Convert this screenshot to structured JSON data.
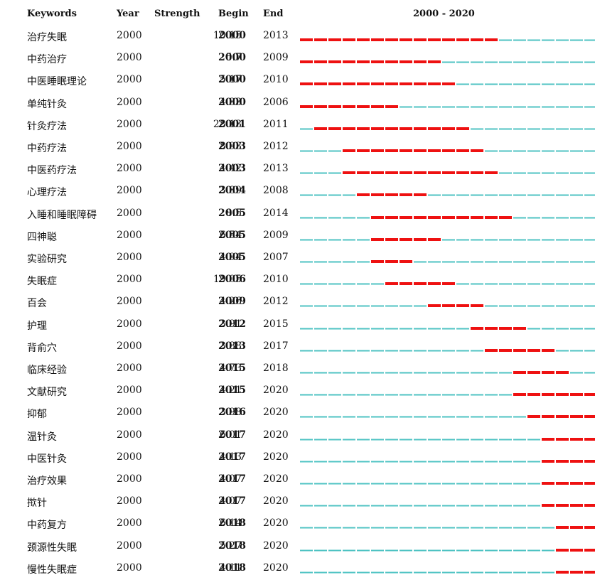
{
  "headers": {
    "keywords": "Keywords",
    "year": "Year",
    "strength": "Strength",
    "begin": "Begin",
    "end": "End",
    "range": "2000 - 2020"
  },
  "colors": {
    "burst": "#ee1111",
    "base": "#4fc3c3"
  },
  "chart_data": {
    "type": "table",
    "range": [
      2000,
      2020
    ],
    "rows": [
      {
        "keyword": "治疗失眠",
        "year": "2000",
        "strength": "10.15",
        "begin": "2000",
        "end": "2013"
      },
      {
        "keyword": "中药治疗",
        "year": "2000",
        "strength": "5.7",
        "begin": "2000",
        "end": "2009"
      },
      {
        "keyword": "中医睡眠理论",
        "year": "2000",
        "strength": "5.17",
        "begin": "2000",
        "end": "2010"
      },
      {
        "keyword": "单纯针灸",
        "year": "2000",
        "strength": "4.33",
        "begin": "2000",
        "end": "2006"
      },
      {
        "keyword": "针灸疗法",
        "year": "2000",
        "strength": "28.13",
        "begin": "2001",
        "end": "2011"
      },
      {
        "keyword": "中药疗法",
        "year": "2000",
        "strength": "8.93",
        "begin": "2003",
        "end": "2012"
      },
      {
        "keyword": "中医药疗法",
        "year": "2000",
        "strength": "4.42",
        "begin": "2003",
        "end": "2013"
      },
      {
        "keyword": "心理疗法",
        "year": "2000",
        "strength": "3.89",
        "begin": "2004",
        "end": "2008"
      },
      {
        "keyword": "入睡和睡眠障碍",
        "year": "2000",
        "strength": "8.5",
        "begin": "2005",
        "end": "2014"
      },
      {
        "keyword": "四神聪",
        "year": "2000",
        "strength": "6.54",
        "begin": "2005",
        "end": "2009"
      },
      {
        "keyword": "实验研究",
        "year": "2000",
        "strength": "4.94",
        "begin": "2005",
        "end": "2007"
      },
      {
        "keyword": "失眠症",
        "year": "2000",
        "strength": "19.05",
        "begin": "2006",
        "end": "2010"
      },
      {
        "keyword": "百会",
        "year": "2000",
        "strength": "4.26",
        "begin": "2009",
        "end": "2012"
      },
      {
        "keyword": "护理",
        "year": "2000",
        "strength": "3.91",
        "begin": "2012",
        "end": "2015"
      },
      {
        "keyword": "背俞穴",
        "year": "2000",
        "strength": "3.88",
        "begin": "2013",
        "end": "2017"
      },
      {
        "keyword": "临床经验",
        "year": "2000",
        "strength": "4.73",
        "begin": "2015",
        "end": "2018"
      },
      {
        "keyword": "文献研究",
        "year": "2000",
        "strength": "4.21",
        "begin": "2015",
        "end": "2020"
      },
      {
        "keyword": "抑郁",
        "year": "2000",
        "strength": "3.98",
        "begin": "2016",
        "end": "2020"
      },
      {
        "keyword": "温针灸",
        "year": "2000",
        "strength": "6.01",
        "begin": "2017",
        "end": "2020"
      },
      {
        "keyword": "中医针灸",
        "year": "2000",
        "strength": "4.13",
        "begin": "2017",
        "end": "2020"
      },
      {
        "keyword": "治疗效果",
        "year": "2000",
        "strength": "4.07",
        "begin": "2017",
        "end": "2020"
      },
      {
        "keyword": "揿针",
        "year": "2000",
        "strength": "4.07",
        "begin": "2017",
        "end": "2020"
      },
      {
        "keyword": "中药复方",
        "year": "2000",
        "strength": "6.14",
        "begin": "2018",
        "end": "2020"
      },
      {
        "keyword": "颈源性失眠",
        "year": "2000",
        "strength": "5.27",
        "begin": "2018",
        "end": "2020"
      },
      {
        "keyword": "慢性失眠症",
        "year": "2000",
        "strength": "4.11",
        "begin": "2018",
        "end": "2020"
      }
    ]
  }
}
